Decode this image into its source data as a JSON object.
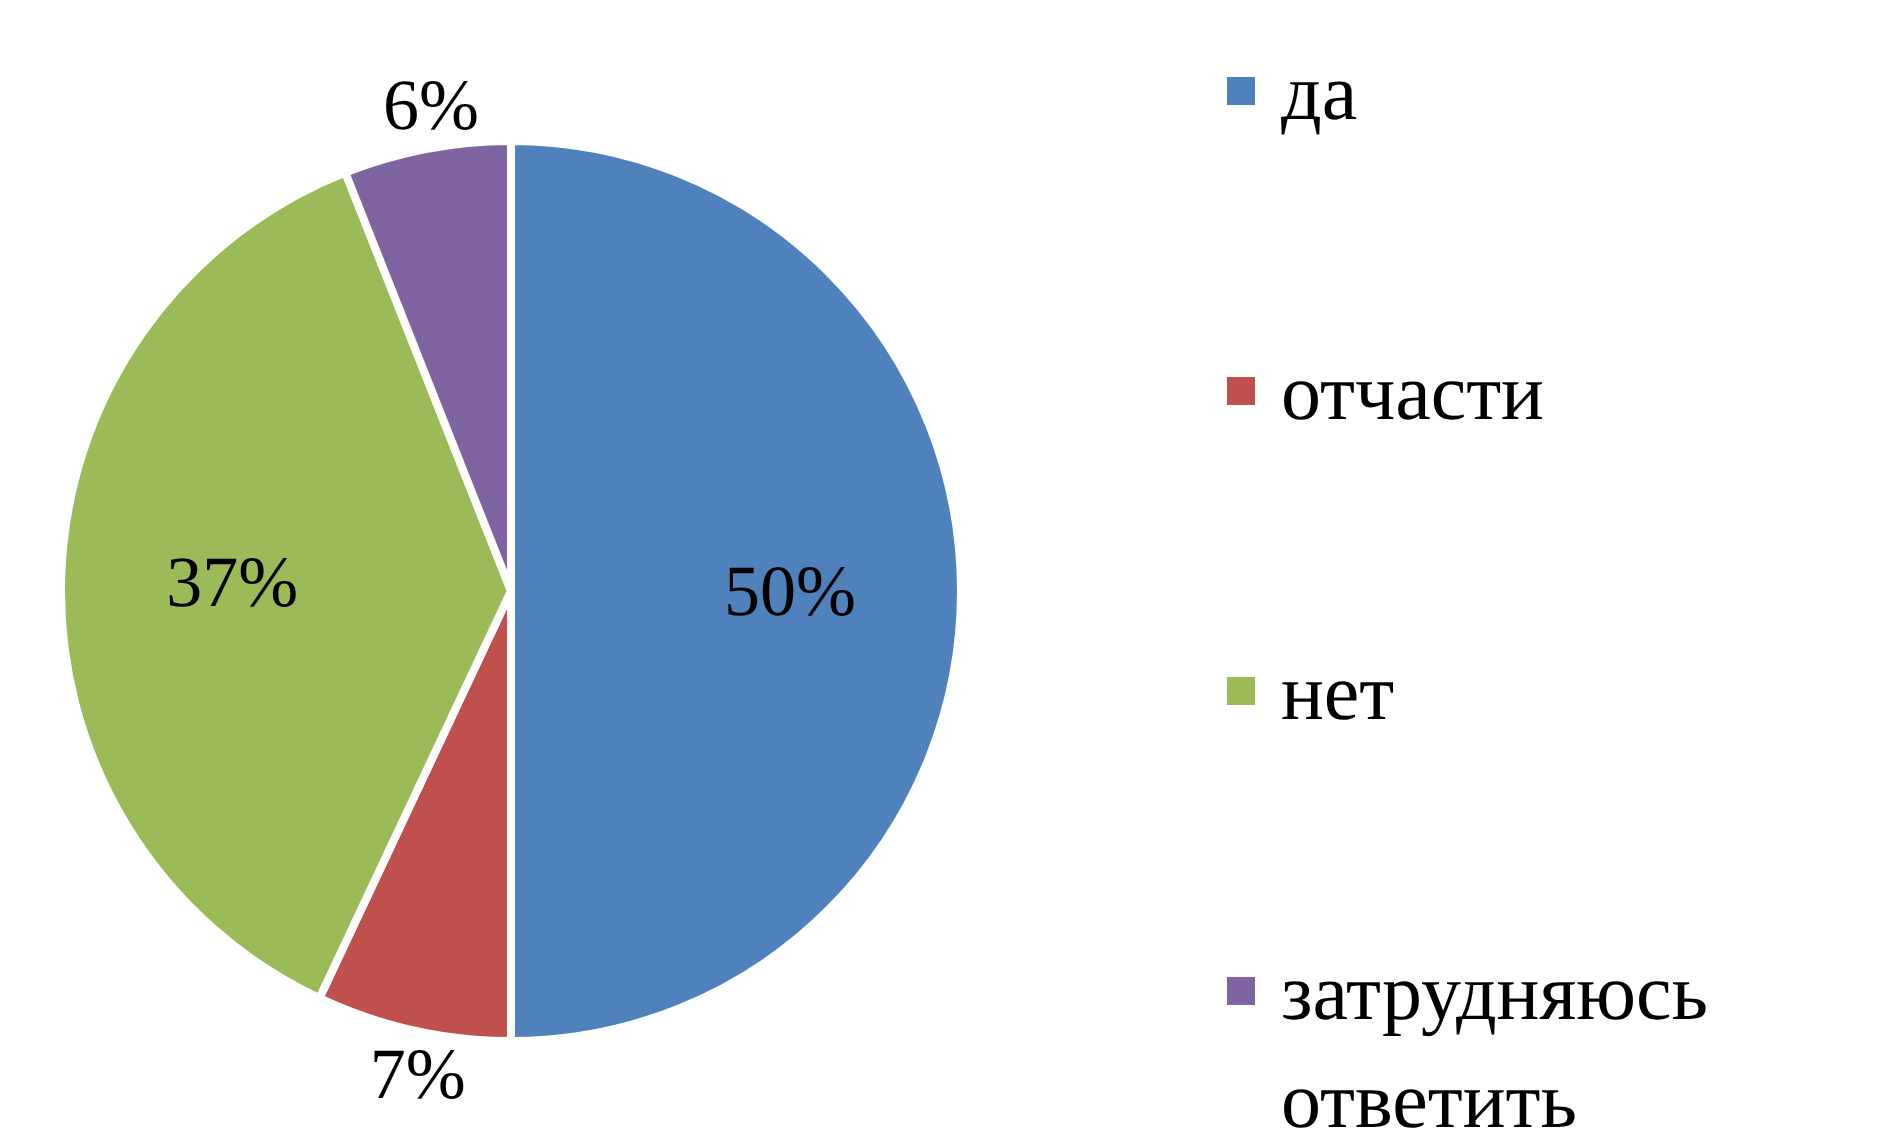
{
  "chart_data": {
    "type": "pie",
    "categories": [
      "да",
      "отчасти",
      "нет",
      "затрудняюсь ответить"
    ],
    "values": [
      50,
      7,
      37,
      6
    ],
    "colors": [
      "#4f81bd",
      "#c0504d",
      "#9bbb59",
      "#8064a2"
    ],
    "value_labels": [
      "50%",
      "7%",
      "37%",
      "6%"
    ],
    "legend": "right"
  }
}
